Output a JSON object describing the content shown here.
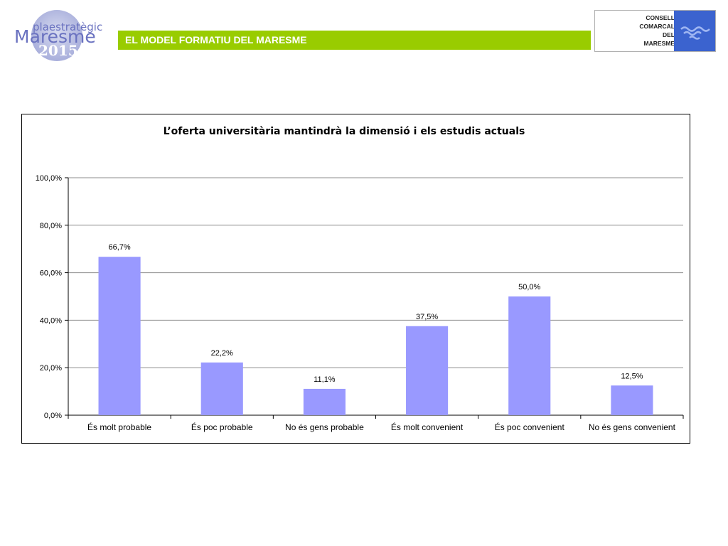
{
  "header": {
    "title": "EL MODEL FORMATIU DEL MARESME"
  },
  "logo_left": {
    "line1": "plaestratègic",
    "line2": "Maresme",
    "line3": "2015"
  },
  "logo_right": {
    "lines": [
      "CONSELL",
      "COMARCAL",
      "DEL",
      "MARESME"
    ]
  },
  "colors": {
    "header_bar": "#99cc00",
    "bar_fill": "#9999ff",
    "logo_square": "#3b63cf"
  },
  "chart_data": {
    "type": "bar",
    "title": "L’oferta universitària mantindrà la dimensió i els estudis actuals",
    "categories": [
      "És molt probable",
      "És poc probable",
      "No és gens probable",
      "És molt convenient",
      "És poc convenient",
      "No és gens convenient"
    ],
    "values": [
      66.7,
      22.2,
      11.1,
      37.5,
      50.0,
      12.5
    ],
    "value_labels": [
      "66,7%",
      "22,2%",
      "11,1%",
      "37,5%",
      "50,0%",
      "12,5%"
    ],
    "ylim": [
      0,
      100
    ],
    "yticks": [
      0,
      20,
      40,
      60,
      80,
      100
    ],
    "ytick_labels": [
      "0,0%",
      "20,0%",
      "40,0%",
      "60,0%",
      "80,0%",
      "100,0%"
    ],
    "grid": true,
    "legend": "none"
  }
}
